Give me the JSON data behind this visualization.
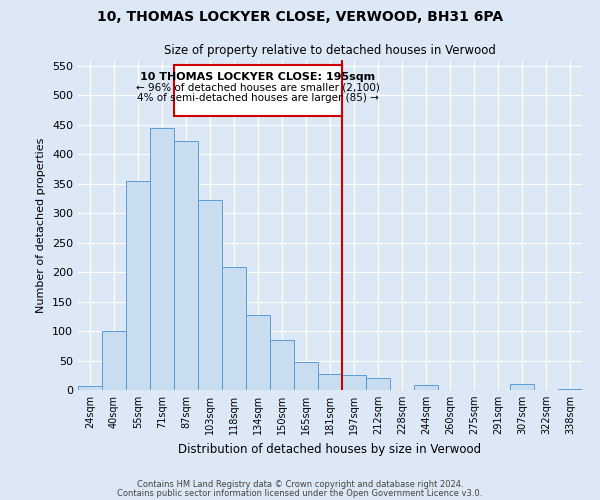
{
  "title": "10, THOMAS LOCKYER CLOSE, VERWOOD, BH31 6PA",
  "subtitle": "Size of property relative to detached houses in Verwood",
  "xlabel": "Distribution of detached houses by size in Verwood",
  "ylabel": "Number of detached properties",
  "bin_labels": [
    "24sqm",
    "40sqm",
    "55sqm",
    "71sqm",
    "87sqm",
    "103sqm",
    "118sqm",
    "134sqm",
    "150sqm",
    "165sqm",
    "181sqm",
    "197sqm",
    "212sqm",
    "228sqm",
    "244sqm",
    "260sqm",
    "275sqm",
    "291sqm",
    "307sqm",
    "322sqm",
    "338sqm"
  ],
  "bar_heights": [
    7,
    100,
    355,
    445,
    422,
    323,
    208,
    128,
    85,
    48,
    28,
    25,
    20,
    0,
    9,
    0,
    0,
    0,
    10,
    0,
    2
  ],
  "bar_color": "#c9ddf0",
  "bar_edge_color": "#5b9bd5",
  "vline_x": 10.5,
  "vline_color": "#cc0000",
  "ylim": [
    0,
    560
  ],
  "yticks": [
    0,
    50,
    100,
    150,
    200,
    250,
    300,
    350,
    400,
    450,
    500,
    550
  ],
  "annotation_title": "10 THOMAS LOCKYER CLOSE: 195sqm",
  "annotation_line1": "← 96% of detached houses are smaller (2,100)",
  "annotation_line2": "4% of semi-detached houses are larger (85) →",
  "footer_line1": "Contains HM Land Registry data © Crown copyright and database right 2024.",
  "footer_line2": "Contains public sector information licensed under the Open Government Licence v3.0.",
  "bg_color": "#dce8f5",
  "plot_bg_color": "#dce8f5"
}
